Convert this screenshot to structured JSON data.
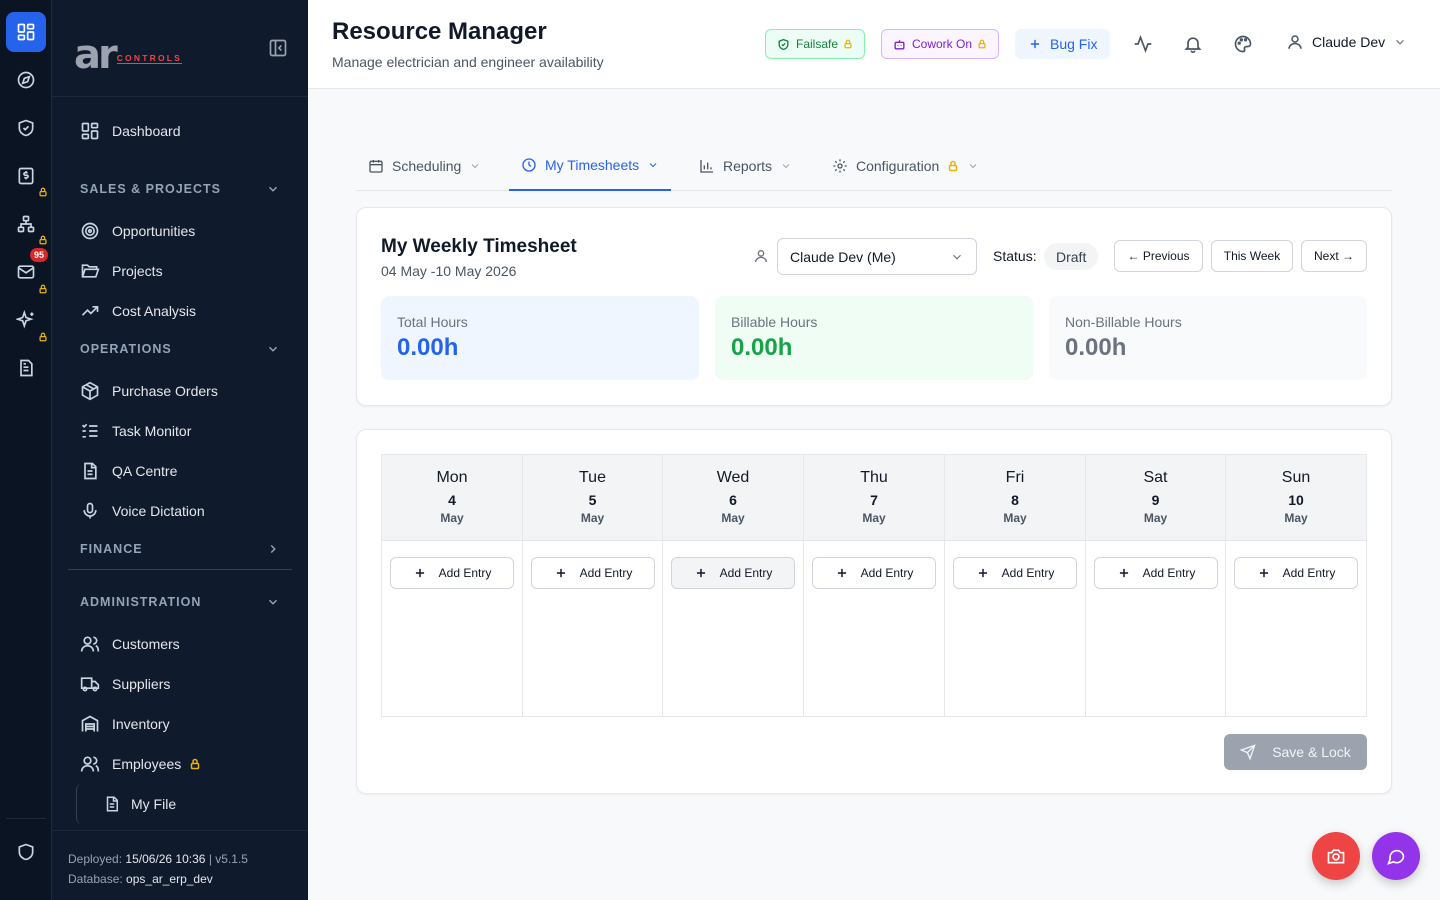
{
  "rail": {
    "badge": "95"
  },
  "sidebar": {
    "logo": {
      "main": "ar",
      "sub": "CONTROLS"
    },
    "dashboard": "Dashboard",
    "sections": [
      {
        "title": "SALES & PROJECTS",
        "items": [
          "Opportunities",
          "Projects",
          "Cost Analysis"
        ]
      },
      {
        "title": "OPERATIONS",
        "items": [
          "Purchase Orders",
          "Task Monitor",
          "QA Centre",
          "Voice Dictation"
        ]
      },
      {
        "title": "FINANCE",
        "items": []
      },
      {
        "title": "ADMINISTRATION",
        "items": [
          "Customers",
          "Suppliers",
          "Inventory",
          "Employees"
        ]
      }
    ],
    "my_file": "My File",
    "footer": {
      "deployed_label": "Deployed:",
      "deployed_value": "15/06/26 10:36",
      "separator": "|",
      "version": "v5.1.5",
      "database_label": "Database:",
      "database_value": "ops_ar_erp_dev"
    }
  },
  "header": {
    "title": "Resource Manager",
    "subtitle": "Manage electrician and engineer availability",
    "failsafe": "Failsafe",
    "cowork": "Cowork On",
    "bugfix": "Bug Fix",
    "user": "Claude Dev"
  },
  "tabs": [
    "Scheduling",
    "My Timesheets",
    "Reports",
    "Configuration"
  ],
  "timesheet": {
    "title": "My Weekly Timesheet",
    "range": "04 May -10 May 2026",
    "employee": "Claude Dev (Me)",
    "status_label": "Status:",
    "status": "Draft",
    "prev": "← Previous",
    "this_week": "This Week",
    "next": "Next →",
    "stats": [
      {
        "label": "Total Hours",
        "value": "0.00h"
      },
      {
        "label": "Billable Hours",
        "value": "0.00h"
      },
      {
        "label": "Non-Billable Hours",
        "value": "0.00h"
      }
    ]
  },
  "week": {
    "days": [
      {
        "name": "Mon",
        "num": "4",
        "month": "May"
      },
      {
        "name": "Tue",
        "num": "5",
        "month": "May"
      },
      {
        "name": "Wed",
        "num": "6",
        "month": "May"
      },
      {
        "name": "Thu",
        "num": "7",
        "month": "May"
      },
      {
        "name": "Fri",
        "num": "8",
        "month": "May"
      },
      {
        "name": "Sat",
        "num": "9",
        "month": "May"
      },
      {
        "name": "Sun",
        "num": "10",
        "month": "May"
      }
    ],
    "add_label": "Add Entry",
    "save_label": "Save & Lock"
  },
  "colors": {
    "accent": "#2563eb",
    "sidebar_bg": "#0f1b2d",
    "rail_bg": "#0b1422",
    "billable": "#16a34a",
    "lock": "#eab308",
    "camera_fab": "#ef4444",
    "chat_fab": "#9333ea"
  }
}
